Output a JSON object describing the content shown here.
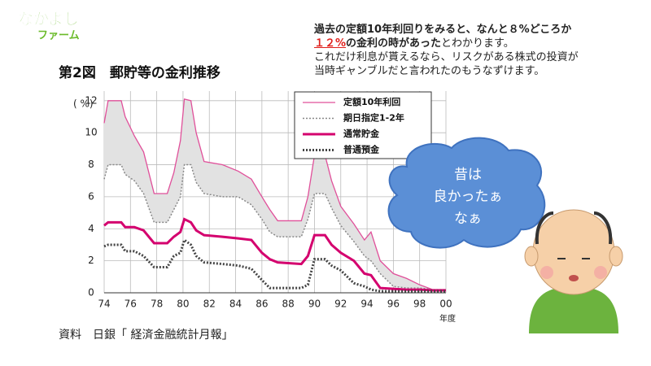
{
  "logo": [
    "なかよし",
    "ファーム"
  ],
  "note": {
    "line1": "過去の定額10年利回りをみると、なんと８%どころか",
    "highlight": "１２%",
    "line2a": "の金利の時があった",
    "line2b": "とわかります。",
    "line3": "これだけ利息が貰えるなら、リスクがある株式の投資が",
    "line4": "当時ギャンブルだと言われたのもうなずけます。"
  },
  "bubble": [
    "昔は",
    "良かったぁ",
    "なぁ"
  ],
  "chart_data": {
    "type": "line",
    "title": "第2図　郵貯等の金利推移",
    "ylabel": "( %)",
    "xlabel": "年度",
    "source": "資料　日銀「 経済金融統計月報」",
    "x": [
      74,
      74.3,
      75.3,
      75.6,
      76.3,
      77,
      77.8,
      78.8,
      79.3,
      79.8,
      80.1,
      80.6,
      81,
      81.6,
      83,
      84.2,
      85.2,
      86,
      86.6,
      87.2,
      89,
      89.5,
      90,
      90.8,
      91.3,
      92,
      93,
      93.8,
      94.3,
      95,
      96,
      97,
      98,
      99,
      100
    ],
    "series": [
      {
        "name": "定額10年利回",
        "color": "#e0509a",
        "width": 1.3,
        "dash": "",
        "values": [
          10.6,
          12,
          12,
          11,
          9.8,
          8.8,
          6.2,
          6.2,
          7.5,
          9.5,
          12.1,
          12,
          10,
          8.2,
          8.0,
          7.6,
          7.1,
          6.0,
          5.2,
          4.5,
          4.5,
          6.0,
          8.6,
          8.6,
          7.0,
          5.4,
          4.3,
          3.3,
          3.8,
          2.0,
          1.2,
          0.9,
          0.5,
          0.2,
          0.2
        ]
      },
      {
        "name": "期日指定1-2年",
        "color": "#888888",
        "width": 1.5,
        "dash": "2 2",
        "values": [
          7.1,
          8.0,
          8.0,
          7.4,
          7.0,
          6.2,
          4.4,
          4.4,
          5.2,
          6.0,
          8.0,
          8.0,
          6.9,
          6.2,
          6.0,
          6.0,
          5.5,
          4.6,
          3.8,
          3.5,
          3.5,
          4.6,
          6.2,
          6.2,
          5.3,
          4.2,
          3.2,
          2.3,
          2.0,
          1.2,
          0.4,
          0.3,
          0.3,
          0.2,
          0.2
        ]
      },
      {
        "name": "通常貯金",
        "color": "#d4006e",
        "width": 3,
        "dash": "",
        "values": [
          4.2,
          4.4,
          4.4,
          4.1,
          4.1,
          3.9,
          3.1,
          3.1,
          3.5,
          3.8,
          4.6,
          4.4,
          3.9,
          3.6,
          3.5,
          3.4,
          3.3,
          2.5,
          2.1,
          1.9,
          1.8,
          2.3,
          3.6,
          3.6,
          3.0,
          2.5,
          2.0,
          1.2,
          1.1,
          0.3,
          0.25,
          0.2,
          0.2,
          0.15,
          0.15
        ]
      },
      {
        "name": "普通預金",
        "color": "#444444",
        "width": 3,
        "dash": "2 2",
        "values": [
          2.9,
          3.0,
          3.0,
          2.6,
          2.6,
          2.3,
          1.6,
          1.6,
          2.3,
          2.5,
          3.3,
          3.0,
          2.3,
          1.9,
          1.8,
          1.7,
          1.5,
          0.8,
          0.3,
          0.3,
          0.3,
          0.5,
          2.1,
          2.1,
          1.7,
          1.4,
          0.6,
          0.4,
          0.2,
          0.1,
          0.1,
          0.1,
          0.1,
          0.1,
          0.1
        ]
      }
    ],
    "band_color": "#e2e2e2",
    "xlim": [
      74,
      100
    ],
    "xticks": [
      74,
      76,
      78,
      80,
      82,
      84,
      86,
      88,
      90,
      92,
      94,
      96,
      98,
      {
        "value": 100,
        "label": "00"
      }
    ],
    "ylim": [
      0,
      12.6
    ],
    "yticks": [
      0,
      2,
      4,
      6,
      8,
      10,
      12
    ],
    "grid": true
  }
}
